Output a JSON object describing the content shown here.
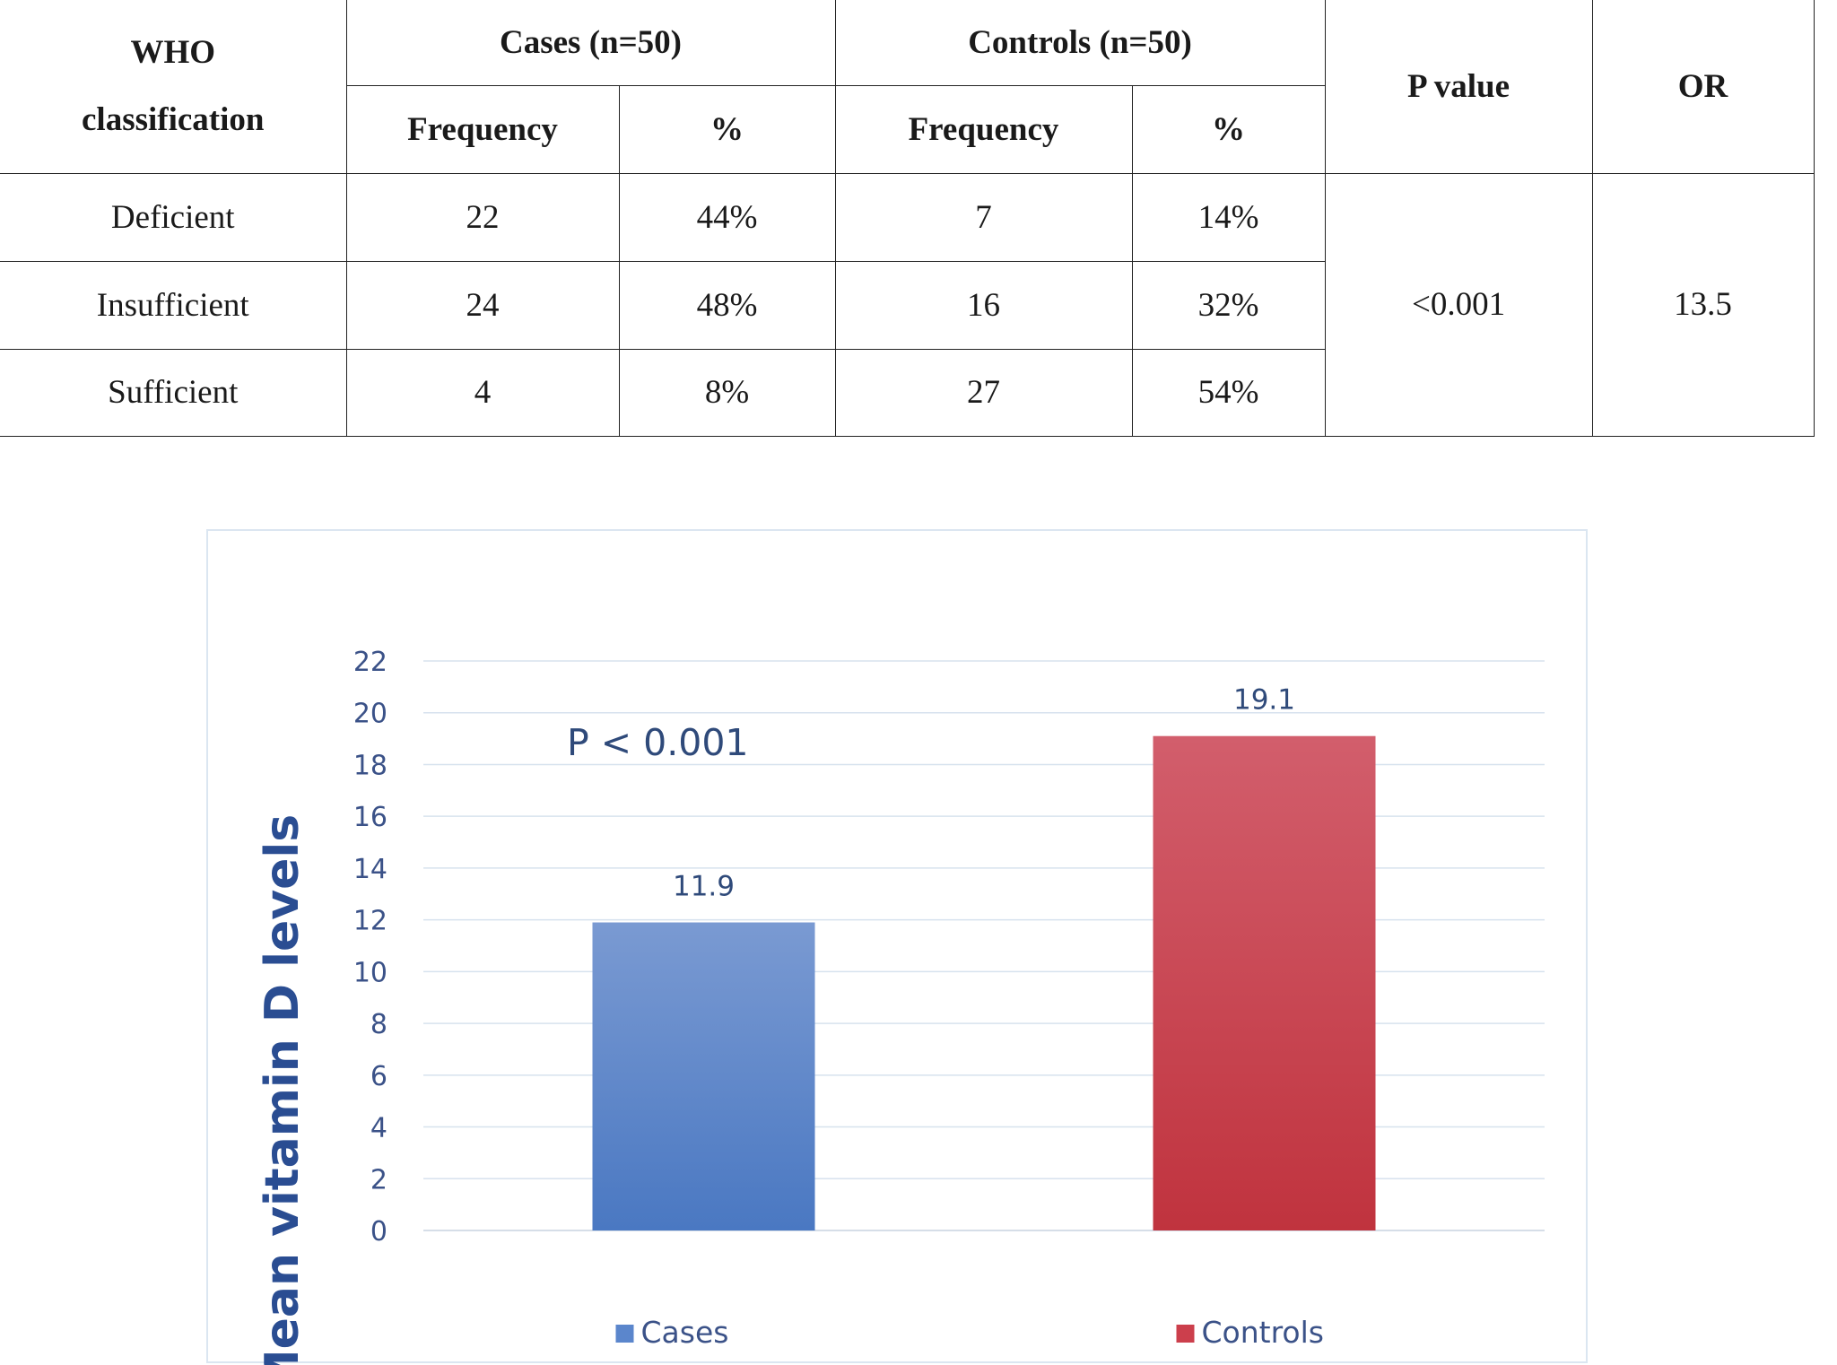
{
  "table": {
    "header": {
      "who": "WHO classification",
      "cases": "Cases (n=50)",
      "controls": "Controls (n=50)",
      "p_value": "P value",
      "or": "OR",
      "frequency": "Frequency",
      "percent": "%"
    },
    "rows": [
      {
        "label": "Deficient",
        "cases_freq": "22",
        "cases_pct": "44%",
        "controls_freq": "7",
        "controls_pct": "14%"
      },
      {
        "label": "Insufficient",
        "cases_freq": "24",
        "cases_pct": "48%",
        "controls_freq": "16",
        "controls_pct": "32%"
      },
      {
        "label": "Sufficient",
        "cases_freq": "4",
        "cases_pct": "8%",
        "controls_freq": "27",
        "controls_pct": "54%"
      }
    ],
    "p_value": "<0.001",
    "or": "13.5"
  },
  "chart_data": {
    "type": "bar",
    "categories": [
      "Cases",
      "Controls"
    ],
    "values": [
      11.9,
      19.1
    ],
    "data_labels": [
      "11.9",
      "19.1"
    ],
    "ylabel": "Mean vitamin D levels",
    "xlabel": "",
    "ylim": [
      0,
      22
    ],
    "yticks": [
      0,
      2,
      4,
      6,
      8,
      10,
      12,
      14,
      16,
      18,
      20,
      22
    ],
    "grid": true,
    "legend": "bottom",
    "annotation": "P < 0.001",
    "colors": [
      "#5b86cc",
      "#cc3f4c"
    ]
  }
}
